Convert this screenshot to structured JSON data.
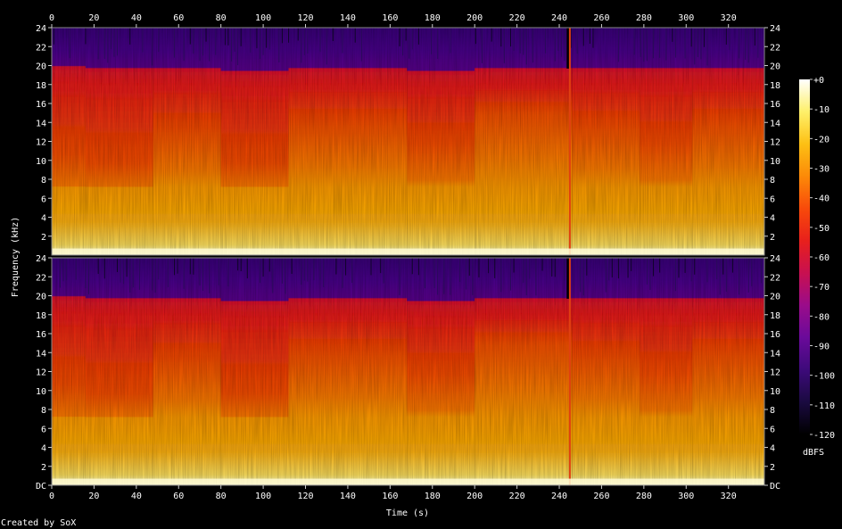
{
  "chart_data": {
    "type": "heatmap",
    "xlabel": "Time (s)",
    "ylabel": "Frequency (kHz)",
    "xlim": [
      0,
      337
    ],
    "ylim": [
      0,
      24
    ],
    "x_ticks": [
      "0",
      "20",
      "40",
      "60",
      "80",
      "100",
      "120",
      "140",
      "160",
      "180",
      "200",
      "220",
      "240",
      "260",
      "280",
      "300",
      "320"
    ],
    "y_ticks_top": [
      "2",
      "4",
      "6",
      "8",
      "10",
      "12",
      "14",
      "16",
      "18",
      "20",
      "22",
      "24"
    ],
    "y_ticks_bottom": [
      "DC",
      "2",
      "4",
      "6",
      "8",
      "10",
      "12",
      "14",
      "16",
      "18",
      "20",
      "22",
      "24"
    ],
    "colorbar": {
      "label": "dBFS",
      "ticks": [
        "+0",
        "-10",
        "-20",
        "-30",
        "-40",
        "-50",
        "-60",
        "-70",
        "-80",
        "-90",
        "-100",
        "-110",
        "-120"
      ],
      "colors": [
        "#000000",
        "#1a0a40",
        "#3d0a7a",
        "#6a0a9a",
        "#9a0c8a",
        "#c81050",
        "#e8201c",
        "#f84a0a",
        "#fc8a08",
        "#fdc014",
        "#fef06a",
        "#ffffff"
      ]
    },
    "segments": [
      {
        "start": 0,
        "end": 16,
        "hf": 0.55,
        "cutoff": 20
      },
      {
        "start": 16,
        "end": 48,
        "hf": 0.5,
        "cutoff": 19.8
      },
      {
        "start": 48,
        "end": 80,
        "hf": 0.68,
        "cutoff": 19.8
      },
      {
        "start": 80,
        "end": 112,
        "hf": 0.5,
        "cutoff": 19.5
      },
      {
        "start": 112,
        "end": 168,
        "hf": 0.72,
        "cutoff": 19.8
      },
      {
        "start": 168,
        "end": 200,
        "hf": 0.6,
        "cutoff": 19.5
      },
      {
        "start": 200,
        "end": 246,
        "hf": 0.78,
        "cutoff": 19.8
      },
      {
        "start": 246,
        "end": 278,
        "hf": 0.7,
        "cutoff": 19.8
      },
      {
        "start": 278,
        "end": 303,
        "hf": 0.6,
        "cutoff": 19.8
      },
      {
        "start": 303,
        "end": 337,
        "hf": 0.72,
        "cutoff": 19.8
      }
    ],
    "channels": 2
  },
  "footer": {
    "credit": "Created by SoX"
  }
}
